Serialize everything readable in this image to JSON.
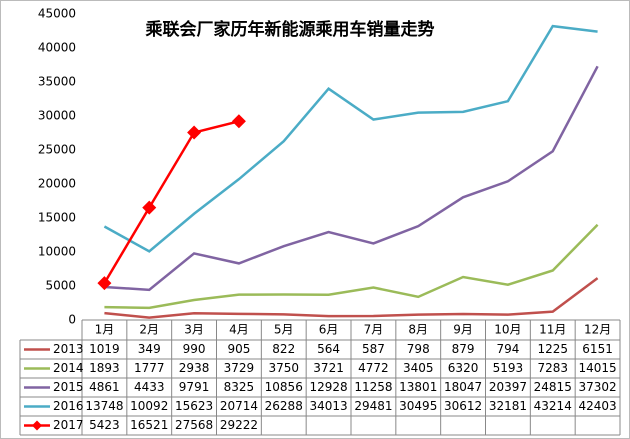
{
  "chart_data": {
    "type": "line",
    "title": "乘联会厂家历年新能源乘用车销量走势",
    "categories": [
      "1月",
      "2月",
      "3月",
      "4月",
      "5月",
      "6月",
      "7月",
      "8月",
      "9月",
      "10月",
      "11月",
      "12月"
    ],
    "series": [
      {
        "name": "2013",
        "color": "#c0504d",
        "values": [
          1019,
          349,
          990,
          905,
          822,
          564,
          587,
          798,
          879,
          794,
          1225,
          6151
        ]
      },
      {
        "name": "2014",
        "color": "#9bbb59",
        "values": [
          1893,
          1777,
          2938,
          3729,
          3750,
          3721,
          4772,
          3405,
          6320,
          5193,
          7283,
          14015
        ]
      },
      {
        "name": "2015",
        "color": "#8064a2",
        "values": [
          4861,
          4433,
          9791,
          8325,
          10856,
          12928,
          11258,
          13801,
          18047,
          20397,
          24815,
          37302
        ]
      },
      {
        "name": "2016",
        "color": "#4bacc6",
        "values": [
          13748,
          10092,
          15623,
          20714,
          26288,
          34013,
          29481,
          30495,
          30612,
          32181,
          43214,
          42403
        ]
      },
      {
        "name": "2017",
        "color": "#ff0000",
        "marker": "diamond",
        "values": [
          5423,
          16521,
          27568,
          29222,
          null,
          null,
          null,
          null,
          null,
          null,
          null,
          null
        ]
      }
    ],
    "ylim": [
      0,
      45000
    ],
    "yticks": [
      0,
      5000,
      10000,
      15000,
      20000,
      25000,
      30000,
      35000,
      40000,
      45000
    ],
    "grid": false
  }
}
